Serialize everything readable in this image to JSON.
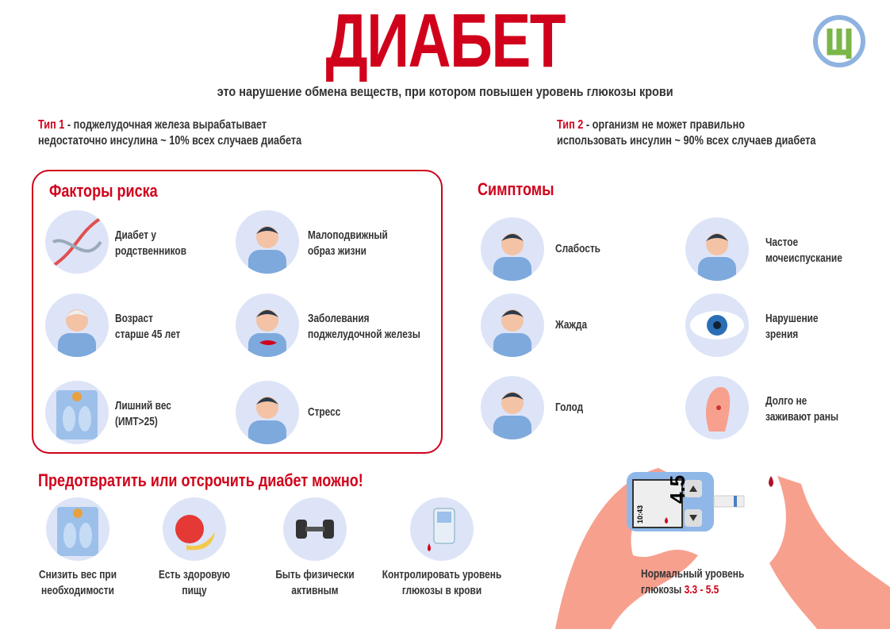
{
  "title": "ДИАБЕТ",
  "subtitle": "это нарушение обмена веществ, при котором повышен уровень глюкозы крови",
  "logo": {
    "letter": "Ц",
    "colors": {
      "ring": "#8fb3e0",
      "letter": "#7ab648"
    }
  },
  "type1": {
    "label": "Тип 1",
    "line1": " - поджелудочная железа вырабатывает",
    "line2": "недостаточно инсулина ~ 10% всех случаев диабета"
  },
  "type2": {
    "label": "Тип 2",
    "line1": " - организм не может правильно",
    "line2": "использовать инсулин ~ 90% всех случаев диабета"
  },
  "risk": {
    "heading": "Факторы риска",
    "items": [
      {
        "l1": "Диабет у",
        "l2": "родственников",
        "icon": "dna-icon"
      },
      {
        "l1": "Малоподвижный",
        "l2": "образ жизни",
        "icon": "sofa-person-icon"
      },
      {
        "l1": "Возраст",
        "l2": "старше 45 лет",
        "icon": "elderly-person-icon"
      },
      {
        "l1": "Заболевания",
        "l2": "поджелудочной железы",
        "icon": "pancreas-icon"
      },
      {
        "l1": "Лишний вес",
        "l2": "(ИМТ>25)",
        "icon": "scale-icon"
      },
      {
        "l1": "Стресс",
        "l2": "",
        "icon": "stress-person-icon"
      }
    ]
  },
  "symptoms": {
    "heading": "Симптомы",
    "items": [
      {
        "l1": "Слабость",
        "l2": "",
        "icon": "low-battery-person-icon"
      },
      {
        "l1": "Частое",
        "l2": "мочеиспускание",
        "icon": "toilet-person-icon"
      },
      {
        "l1": "Жажда",
        "l2": "",
        "icon": "drinking-person-icon"
      },
      {
        "l1": "Нарушение",
        "l2": "зрения",
        "icon": "eye-icon"
      },
      {
        "l1": "Голод",
        "l2": "",
        "icon": "hungry-person-icon"
      },
      {
        "l1": "Долго не",
        "l2": "заживают раны",
        "icon": "wounded-foot-icon"
      }
    ]
  },
  "prevent": {
    "heading": "Предотвратить или отсрочить диабет можно!",
    "items": [
      {
        "l1": "Снизить вес при",
        "l2": "необходимости",
        "icon": "scale-icon"
      },
      {
        "l1": "Есть здоровую",
        "l2": "пищу",
        "icon": "fruit-icon"
      },
      {
        "l1": "Быть физически",
        "l2": "активным",
        "icon": "dumbbell-icon"
      },
      {
        "l1": "Контролировать уровень",
        "l2": "глюкозы в крови",
        "icon": "glucometer-icon"
      }
    ]
  },
  "meter": {
    "reading": "4.5",
    "time": "10:43"
  },
  "normal": {
    "line1": "Нормальный уровень",
    "line2_prefix": "глюкозы ",
    "range": "3.3 - 5.5"
  },
  "colors": {
    "accent": "#d0021b",
    "circle": "#dde4f7",
    "skin": "#f7a08e"
  }
}
